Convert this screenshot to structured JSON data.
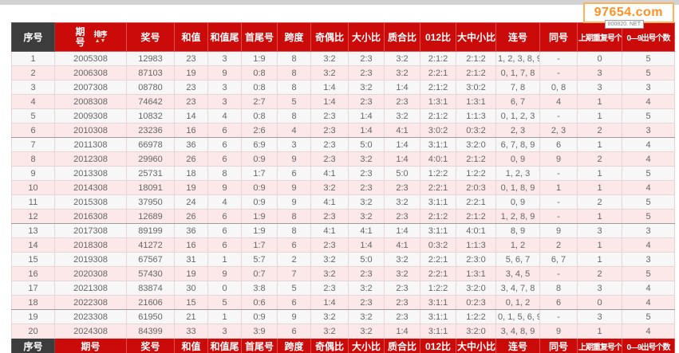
{
  "page": {
    "watermark": "97654.com",
    "badge": "800820. NET"
  },
  "table": {
    "sort_label": "排序",
    "sort_arrows": "▲▼",
    "columns": [
      "序号",
      "期号",
      "奖号",
      "和值",
      "和值尾",
      "首尾号",
      "跨度",
      "奇偶比",
      "大小比",
      "质合比",
      "012比",
      "大中小比",
      "连号",
      "同号",
      "上期重复号个数",
      "0—9出号个数"
    ],
    "rows": [
      [
        "1",
        "2005308",
        "12983",
        "23",
        "3",
        "1:9",
        "8",
        "3:2",
        "2:3",
        "3:2",
        "2:1:2",
        "2:1:2",
        "1, 2, 3, 8, 9",
        "-",
        "0",
        "5"
      ],
      [
        "2",
        "2006308",
        "87103",
        "19",
        "9",
        "0:8",
        "8",
        "3:2",
        "2:3",
        "3:2",
        "2:2:1",
        "2:1:2",
        "0, 1, 7, 8",
        "-",
        "3",
        "5"
      ],
      [
        "3",
        "2007308",
        "08780",
        "23",
        "3",
        "0:8",
        "8",
        "1:4",
        "3:2",
        "1:4",
        "2:1:2",
        "3:0:2",
        "7, 8",
        "0, 8",
        "3",
        "3"
      ],
      [
        "4",
        "2008308",
        "74642",
        "23",
        "3",
        "2:7",
        "5",
        "1:4",
        "2:3",
        "2:3",
        "1:3:1",
        "1:3:1",
        "6, 7",
        "4",
        "1",
        "4"
      ],
      [
        "5",
        "2009308",
        "10832",
        "14",
        "4",
        "0:8",
        "8",
        "2:3",
        "1:4",
        "3:2",
        "2:1:2",
        "1:1:3",
        "0, 1, 2, 3",
        "-",
        "1",
        "5"
      ],
      [
        "6",
        "2010308",
        "23236",
        "16",
        "6",
        "2:6",
        "4",
        "2:3",
        "1:4",
        "4:1",
        "3:0:2",
        "0:3:2",
        "2, 3",
        "2, 3",
        "2",
        "3"
      ],
      [
        "7",
        "2011308",
        "66978",
        "36",
        "6",
        "6:9",
        "3",
        "2:3",
        "5:0",
        "1:4",
        "3:1:1",
        "3:2:0",
        "6, 7, 8, 9",
        "6",
        "1",
        "4"
      ],
      [
        "8",
        "2012308",
        "29960",
        "26",
        "6",
        "0:9",
        "9",
        "2:3",
        "3:2",
        "1:4",
        "4:0:1",
        "2:1:2",
        "0, 9",
        "9",
        "2",
        "4"
      ],
      [
        "9",
        "2013308",
        "25731",
        "18",
        "8",
        "1:7",
        "6",
        "4:1",
        "2:3",
        "5:0",
        "1:2:2",
        "1:2:2",
        "1, 2, 3",
        "-",
        "1",
        "5"
      ],
      [
        "10",
        "2014308",
        "18091",
        "19",
        "9",
        "0:9",
        "9",
        "3:2",
        "2:3",
        "2:3",
        "2:2:1",
        "2:0:3",
        "0, 1, 8, 9",
        "1",
        "1",
        "4"
      ],
      [
        "11",
        "2015308",
        "37950",
        "24",
        "4",
        "0:9",
        "9",
        "4:1",
        "3:2",
        "3:2",
        "3:1:1",
        "2:2:1",
        "0, 9",
        "-",
        "2",
        "5"
      ],
      [
        "12",
        "2016308",
        "12689",
        "26",
        "6",
        "1:9",
        "8",
        "2:3",
        "3:2",
        "2:3",
        "2:1:2",
        "2:1:2",
        "1, 2, 8, 9",
        "-",
        "1",
        "5"
      ],
      [
        "13",
        "2017308",
        "89199",
        "36",
        "6",
        "1:9",
        "8",
        "4:1",
        "4:1",
        "1:4",
        "3:1:1",
        "4:0:1",
        "8, 9",
        "9",
        "3",
        "3"
      ],
      [
        "14",
        "2018308",
        "41272",
        "16",
        "6",
        "1:7",
        "6",
        "2:3",
        "1:4",
        "4:1",
        "0:3:2",
        "1:1:3",
        "1, 2",
        "2",
        "1",
        "4"
      ],
      [
        "15",
        "2019308",
        "67567",
        "31",
        "1",
        "5:7",
        "2",
        "3:2",
        "5:0",
        "3:2",
        "2:2:1",
        "2:3:0",
        "5, 6, 7",
        "6, 7",
        "1",
        "3"
      ],
      [
        "16",
        "2020308",
        "57430",
        "19",
        "9",
        "0:7",
        "7",
        "3:2",
        "2:3",
        "3:2",
        "2:2:1",
        "1:3:1",
        "3, 4, 5",
        "-",
        "2",
        "5"
      ],
      [
        "17",
        "2021308",
        "83874",
        "30",
        "0",
        "3:8",
        "5",
        "2:3",
        "3:2",
        "2:3",
        "1:2:2",
        "3:2:0",
        "3, 4, 7, 8",
        "8",
        "3",
        "4"
      ],
      [
        "18",
        "2022308",
        "21606",
        "15",
        "5",
        "0:6",
        "6",
        "1:4",
        "2:3",
        "2:3",
        "3:1:1",
        "0:2:3",
        "0, 1, 2",
        "6",
        "0",
        "4"
      ],
      [
        "19",
        "2023308",
        "61950",
        "21",
        "1",
        "0:9",
        "9",
        "3:2",
        "3:2",
        "2:3",
        "3:1:1",
        "1:2:2",
        "0, 1, 5, 6, 9",
        "-",
        "3",
        "5"
      ],
      [
        "20",
        "2024308",
        "84399",
        "33",
        "3",
        "3:9",
        "6",
        "3:2",
        "3:2",
        "1:4",
        "3:1:1",
        "3:2:0",
        "3, 4, 8, 9",
        "9",
        "1",
        "4"
      ]
    ]
  }
}
